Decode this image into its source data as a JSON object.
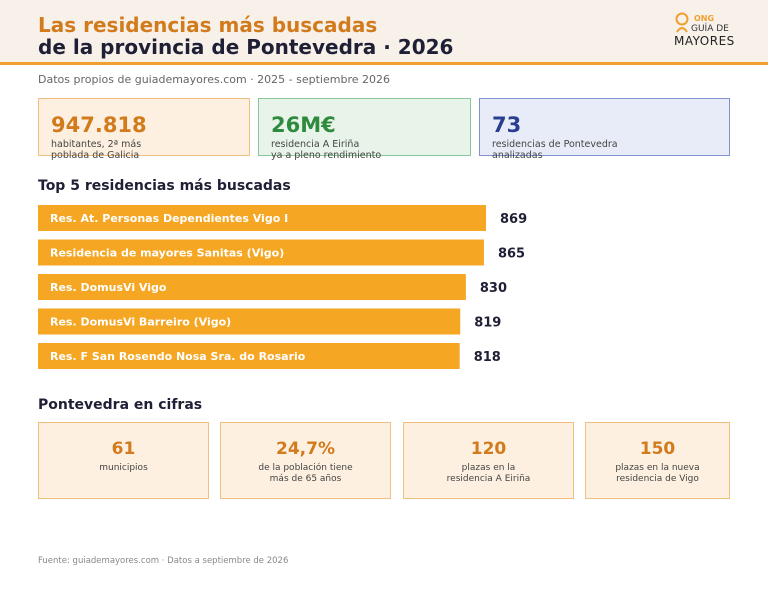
{
  "header": {
    "title_line1": "Las residencias más buscadas",
    "title_line2": "de la provincia de Pontevedra · 2026",
    "logo": {
      "ong": "ONG",
      "guia": "GUÍA DE",
      "mayores": "MAYORES"
    }
  },
  "subtitle": "Datos propios de guiademayores.com · 2025 - septiembre 2026",
  "kpis": [
    {
      "value": "947.818",
      "label_line1": "habitantes, 2ª más",
      "label_line2": "poblada de Galicia",
      "color": "#d17b1c"
    },
    {
      "value": "26M€",
      "label_line1": "residencia A Eiriña",
      "label_line2": "ya a pleno rendimiento",
      "color": "#2e8b3e"
    },
    {
      "value": "73",
      "label_line1": "residencias de Pontevedra",
      "label_line2": "analizadas",
      "color": "#2a3e8f"
    }
  ],
  "top5_title": "Top 5 residencias más buscadas",
  "chart_data": {
    "type": "bar",
    "orientation": "horizontal",
    "categories": [
      "Res. At. Personas Dependientes Vigo I",
      "Residencia de mayores Sanitas (Vigo)",
      "Res. DomusVi Vigo",
      "Res. DomusVi Barreiro (Vigo)",
      "Res. F San Rosendo Nosa Sra. do Rosario"
    ],
    "values": [
      869,
      865,
      830,
      819,
      818
    ],
    "bar_color": "#f5a623",
    "title": "Top 5 residencias más buscadas"
  },
  "cifras_title": "Pontevedra en cifras",
  "stats": [
    {
      "value": "61",
      "label_line1": "municipios",
      "label_line2": ""
    },
    {
      "value": "24,7%",
      "label_line1": "de la población tiene",
      "label_line2": "más de 65 años"
    },
    {
      "value": "120",
      "label_line1": "plazas en la",
      "label_line2": "residencia A Eiriña"
    },
    {
      "value": "150",
      "label_line1": "plazas en la nueva",
      "label_line2": "residencia de Vigo"
    }
  ],
  "footer": "Fuente: guiademayores.com · Datos a septiembre de 2026"
}
